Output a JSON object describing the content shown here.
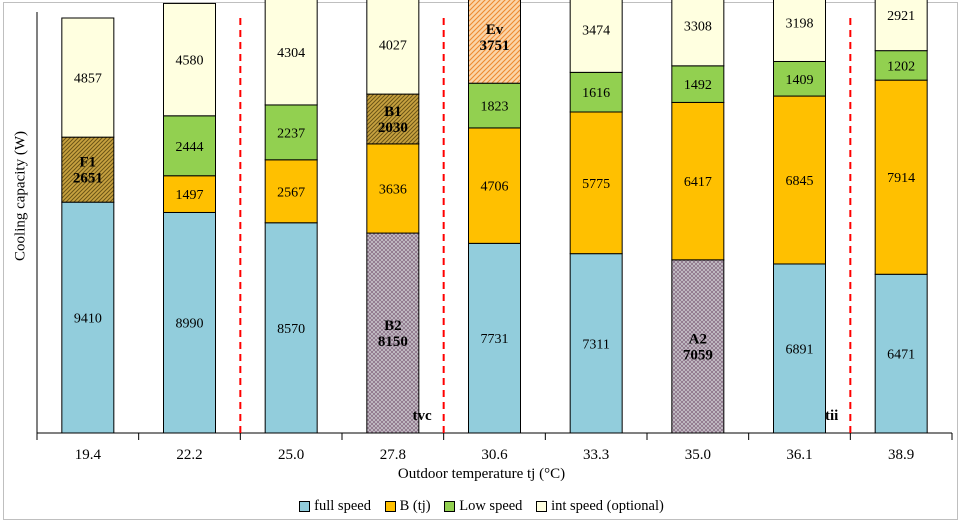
{
  "chart_data": {
    "type": "bar",
    "stacked": true,
    "xlabel": "Outdoor temperature  tj  (°C)",
    "ylabel": "Cooling capacity (W)",
    "categories": [
      "19.4",
      "22.2",
      "25.0",
      "27.8",
      "30.6",
      "33.3",
      "35.0",
      "36.1",
      "38.9"
    ],
    "series": [
      {
        "key": "full",
        "name": "full speed",
        "color": "#92cddc",
        "values": [
          9410,
          8990,
          8570,
          8150,
          7731,
          7311,
          7059,
          6891,
          6471
        ]
      },
      {
        "key": "b",
        "name": "B (tj)",
        "color": "#ffc000",
        "values": [
          null,
          1497,
          2567,
          3636,
          4706,
          5775,
          6417,
          6845,
          7914
        ]
      },
      {
        "key": "low",
        "name": "Low speed",
        "color": "#92d050",
        "values": [
          2651,
          2444,
          2237,
          2030,
          1823,
          1616,
          1492,
          1409,
          1202
        ]
      },
      {
        "key": "int",
        "name": "int speed (optional)",
        "color": "#ffffe0",
        "values": [
          4857,
          4580,
          4304,
          4027,
          3751,
          3474,
          3308,
          3198,
          2921
        ]
      }
    ],
    "highlighted_points": [
      {
        "category": "19.4",
        "series": "low",
        "label": "F1",
        "value": "2651",
        "pattern": "olive-hatch"
      },
      {
        "category": "27.8",
        "series": "low",
        "label": "B1",
        "value": "2030",
        "pattern": "olive-hatch"
      },
      {
        "category": "27.8",
        "series": "full",
        "label": "B2",
        "value": "8150",
        "pattern": "gray-crosshatch"
      },
      {
        "category": "30.6",
        "series": "int",
        "label": "Ev",
        "value": "3751",
        "pattern": "orange-hatch"
      },
      {
        "category": "35.0",
        "series": "full",
        "label": "A2",
        "value": "7059",
        "pattern": "gray-crosshatch"
      }
    ],
    "reference_lines": [
      {
        "between": [
          "22.2",
          "25.0"
        ],
        "style": "red-dashed",
        "label": ""
      },
      {
        "between": [
          "27.8",
          "30.6"
        ],
        "style": "red-dashed",
        "label": "tvc"
      },
      {
        "between": [
          "36.1",
          "38.9"
        ],
        "style": "red-dashed",
        "label": "tii"
      }
    ],
    "grid": false,
    "legend_position": "bottom"
  }
}
